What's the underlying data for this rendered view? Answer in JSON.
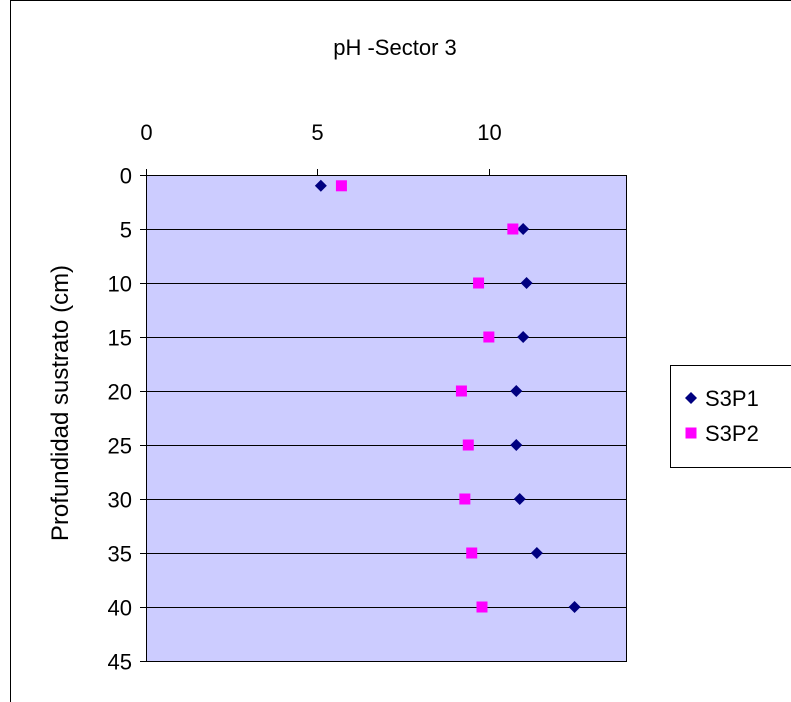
{
  "chart_data": {
    "type": "scatter",
    "title": "pH -Sector 3",
    "xlabel": "",
    "ylabel": "Profundidad sustrato (cm)",
    "xlim": [
      0,
      14
    ],
    "ylim": [
      0,
      45
    ],
    "y_inverted": true,
    "x_axis_position": "top",
    "x_ticks": [
      0,
      5,
      10
    ],
    "y_ticks": [
      0,
      5,
      10,
      15,
      20,
      25,
      30,
      35,
      40,
      45
    ],
    "grid": "horizontal",
    "legend_position": "right",
    "colors": {
      "plot_background": "#ccccff"
    },
    "series": [
      {
        "name": "S3P1",
        "marker": "diamond",
        "color": "#000080",
        "points": [
          {
            "x": 5.1,
            "y": 1
          },
          {
            "x": 11.0,
            "y": 5
          },
          {
            "x": 11.1,
            "y": 10
          },
          {
            "x": 11.0,
            "y": 15
          },
          {
            "x": 10.8,
            "y": 20
          },
          {
            "x": 10.8,
            "y": 25
          },
          {
            "x": 10.9,
            "y": 30
          },
          {
            "x": 11.4,
            "y": 35
          },
          {
            "x": 12.5,
            "y": 40
          }
        ]
      },
      {
        "name": "S3P2",
        "marker": "square",
        "color": "#ff00ff",
        "points": [
          {
            "x": 5.7,
            "y": 1
          },
          {
            "x": 10.7,
            "y": 5
          },
          {
            "x": 9.7,
            "y": 10
          },
          {
            "x": 10.0,
            "y": 15
          },
          {
            "x": 9.2,
            "y": 20
          },
          {
            "x": 9.4,
            "y": 25
          },
          {
            "x": 9.3,
            "y": 30
          },
          {
            "x": 9.5,
            "y": 35
          },
          {
            "x": 9.8,
            "y": 40
          }
        ]
      }
    ]
  }
}
